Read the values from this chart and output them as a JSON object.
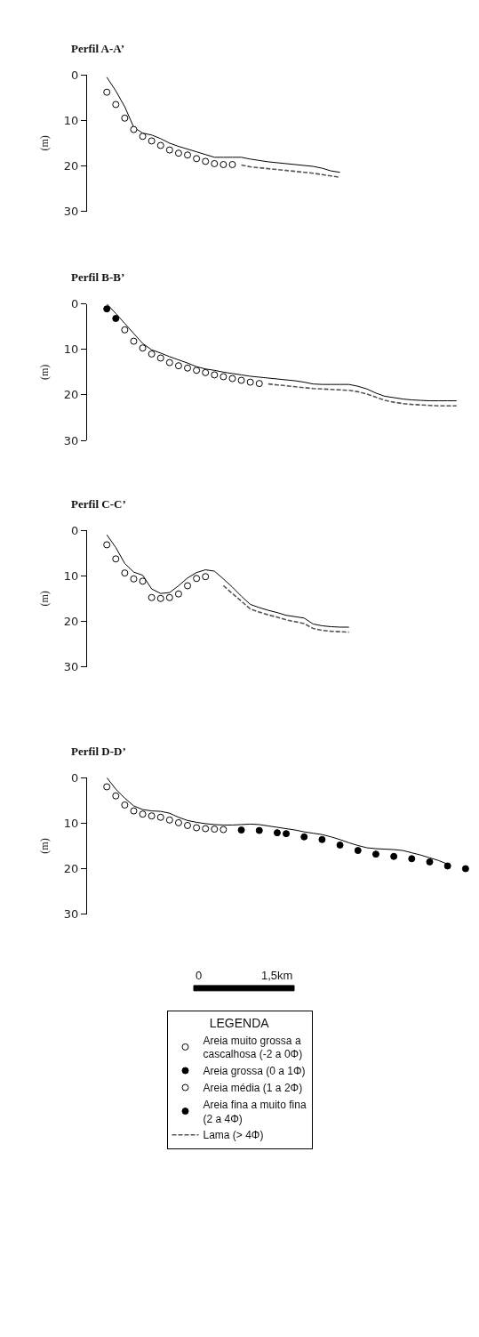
{
  "chart_data": [
    {
      "type": "line",
      "title": "Perfil A-A’",
      "ylabel": "(m)",
      "ylim": [
        30,
        0
      ],
      "yticks": [
        0,
        10,
        20,
        30
      ],
      "tick_labels": "y",
      "categories": [
        null,
        null,
        null,
        null,
        null,
        null,
        null,
        null,
        null,
        null,
        null,
        null,
        null,
        null,
        null,
        null,
        null,
        null,
        null,
        null,
        null,
        null,
        null,
        null,
        null,
        null,
        null,
        null,
        null,
        null,
        null,
        null,
        null,
        null,
        null,
        null,
        null,
        null,
        null,
        null,
        null
      ],
      "series": [
        {
          "type": "line",
          "color": "#000000",
          "marker": "none",
          "line_style": "solid",
          "values": [
            0.5,
            3.5,
            7,
            11.5,
            12.8,
            13.2,
            14,
            15,
            15.7,
            16.3,
            16.9,
            17.5,
            18.1,
            18.1,
            18.1,
            18.1,
            18.5,
            18.8,
            19.1,
            19.3,
            19.5,
            19.7,
            19.9,
            20.1,
            20.5,
            21.1,
            21.4,
            null,
            null,
            null,
            null,
            null,
            null,
            null,
            null,
            null,
            null,
            null,
            null,
            null,
            null
          ]
        },
        {
          "type": "scatter",
          "color": "#ffffff",
          "marker": "circle",
          "values": [
            3.8,
            6.5,
            9.5,
            12,
            13.5,
            14.5,
            15.5,
            16.5,
            17.2,
            17.6,
            18.4,
            19,
            19.5,
            19.7,
            19.7,
            null,
            null,
            null,
            null,
            null,
            null,
            null,
            null,
            null,
            null,
            null,
            null,
            null,
            null,
            null,
            null,
            null,
            null,
            null,
            null,
            null,
            null,
            null,
            null,
            null,
            null
          ]
        },
        {
          "type": "line",
          "color": "#555555",
          "marker": "none",
          "line_style": "dashed",
          "values": [
            null,
            null,
            null,
            null,
            null,
            null,
            null,
            null,
            null,
            null,
            null,
            null,
            null,
            null,
            null,
            19.8,
            20.2,
            20.4,
            20.6,
            20.8,
            21,
            21.2,
            21.4,
            21.6,
            21.9,
            22.2,
            22.5,
            null,
            null,
            null,
            null,
            null,
            null,
            null,
            null,
            null,
            null,
            null,
            null,
            null,
            null
          ]
        }
      ]
    },
    {
      "type": "line",
      "title": "Perfil B-B’",
      "ylabel": "(m)",
      "ylim": [
        30,
        0
      ],
      "yticks": [
        0,
        10,
        20,
        30
      ],
      "tick_labels": "y",
      "categories": [
        null,
        null,
        null,
        null,
        null,
        null,
        null,
        null,
        null,
        null,
        null,
        null,
        null,
        null,
        null,
        null,
        null,
        null,
        null,
        null,
        null,
        null,
        null,
        null,
        null,
        null,
        null,
        null,
        null,
        null,
        null,
        null,
        null,
        null,
        null,
        null,
        null,
        null,
        null,
        null,
        null
      ],
      "series": [
        {
          "type": "line",
          "color": "#000000",
          "marker": "none",
          "line_style": "solid",
          "values": [
            0,
            2.1,
            4.3,
            6.5,
            8.7,
            10.1,
            10.8,
            11.6,
            12.3,
            13,
            13.8,
            14.3,
            14.6,
            15,
            15.3,
            15.6,
            15.9,
            16.1,
            16.3,
            16.5,
            16.7,
            16.9,
            17.2,
            17.6,
            17.7,
            17.7,
            17.7,
            17.7,
            18.1,
            18.7,
            19.6,
            20.3,
            20.6,
            20.9,
            21.1,
            21.2,
            21.3,
            21.3,
            21.3,
            21.3,
            null
          ]
        },
        {
          "type": "scatter",
          "color": "#000000",
          "marker": "circle",
          "values": [
            1.1,
            3.2,
            null,
            null,
            null,
            null,
            null,
            null,
            null,
            null,
            null,
            null,
            null,
            null,
            null,
            null,
            null,
            null,
            null,
            null,
            null,
            null,
            null,
            null,
            null,
            null,
            null,
            null,
            null,
            null,
            null,
            null,
            null,
            null,
            null,
            null,
            null,
            null,
            null,
            null,
            null
          ]
        },
        {
          "type": "scatter",
          "color": "#ffffff",
          "marker": "circle",
          "values": [
            null,
            null,
            5.7,
            8.2,
            9.7,
            11,
            11.9,
            12.9,
            13.6,
            14.1,
            14.6,
            15.1,
            15.6,
            16,
            16.4,
            16.8,
            17.2,
            17.5,
            null,
            null,
            null,
            null,
            null,
            null,
            null,
            null,
            null,
            null,
            null,
            null,
            null,
            null,
            null,
            null,
            null,
            null,
            null,
            null,
            null,
            null,
            null
          ]
        },
        {
          "type": "line",
          "color": "#555555",
          "marker": "none",
          "line_style": "dashed",
          "values": [
            null,
            null,
            null,
            null,
            null,
            null,
            null,
            null,
            null,
            null,
            null,
            null,
            null,
            null,
            null,
            null,
            null,
            null,
            17.6,
            17.8,
            18,
            18.2,
            18.4,
            18.6,
            18.7,
            18.8,
            18.9,
            19,
            19.3,
            19.8,
            20.5,
            21.2,
            21.6,
            21.9,
            22.1,
            22.2,
            22.3,
            22.4,
            22.4,
            22.4,
            null
          ]
        }
      ]
    },
    {
      "type": "line",
      "title": "Perfil C-C’",
      "ylabel": "(m)",
      "ylim": [
        30,
        0
      ],
      "yticks": [
        0,
        10,
        20,
        30
      ],
      "tick_labels": "y",
      "categories": [
        null,
        null,
        null,
        null,
        null,
        null,
        null,
        null,
        null,
        null,
        null,
        null,
        null,
        null,
        null,
        null,
        null,
        null,
        null,
        null,
        null,
        null,
        null,
        null,
        null,
        null,
        null,
        null,
        null,
        null,
        null,
        null,
        null,
        null,
        null,
        null,
        null,
        null,
        null,
        null,
        null
      ],
      "series": [
        {
          "type": "line",
          "color": "#000000",
          "marker": "none",
          "line_style": "solid",
          "values": [
            1,
            3.8,
            7.3,
            9.2,
            9.9,
            12.9,
            13.9,
            13.7,
            12.2,
            10.5,
            9.3,
            8.7,
            9,
            10.7,
            12.5,
            14.5,
            16.3,
            17,
            17.6,
            18.1,
            18.7,
            19,
            19.3,
            20.6,
            21,
            21.2,
            21.3,
            21.3,
            null,
            null,
            null,
            null,
            null,
            null,
            null,
            null,
            null,
            null,
            null,
            null,
            null
          ]
        },
        {
          "type": "scatter",
          "color": "#ffffff",
          "marker": "circle",
          "values": [
            3.2,
            6.3,
            9.4,
            10.7,
            11.2,
            14.8,
            15,
            14.8,
            14,
            12.2,
            10.6,
            10.2,
            null,
            null,
            null,
            null,
            null,
            null,
            null,
            null,
            null,
            null,
            null,
            null,
            null,
            null,
            null,
            null,
            null,
            null,
            null,
            null,
            null,
            null,
            null,
            null,
            null,
            null,
            null,
            null,
            null
          ]
        },
        {
          "type": "line",
          "color": "#555555",
          "marker": "none",
          "line_style": "dashed",
          "values": [
            null,
            null,
            null,
            null,
            null,
            null,
            null,
            null,
            null,
            null,
            null,
            null,
            null,
            12.2,
            13.9,
            15.6,
            17.3,
            18,
            18.6,
            19.1,
            19.7,
            20.1,
            20.5,
            21.6,
            22,
            22.2,
            22.3,
            22.4,
            null,
            null,
            null,
            null,
            null,
            null,
            null,
            null,
            null,
            null,
            null,
            null,
            null
          ]
        }
      ]
    },
    {
      "type": "line",
      "title": "Perfil D-D’",
      "ylabel": "(m)",
      "ylim": [
        30,
        0
      ],
      "yticks": [
        0,
        10,
        20,
        30
      ],
      "tick_labels": "y",
      "legend": "bottom",
      "legend_title": "LEGENDA",
      "annotations": [
        "0",
        "1,5km"
      ],
      "categories": [
        null,
        null,
        null,
        null,
        null,
        null,
        null,
        null,
        null,
        null,
        null,
        null,
        null,
        null,
        null,
        null,
        null,
        null,
        null,
        null,
        null,
        null,
        null,
        null,
        null,
        null,
        null,
        null,
        null,
        null,
        null,
        null,
        null,
        null,
        null,
        null,
        null,
        null,
        null,
        null,
        null
      ],
      "series": [
        {
          "type": "line",
          "color": "#000000",
          "marker": "none",
          "line_style": "solid",
          "values": [
            0,
            2.5,
            4.5,
            6.2,
            7,
            7.3,
            7.4,
            7.8,
            8.7,
            9.4,
            9.8,
            10.1,
            10.3,
            10.4,
            10.4,
            10.3,
            10.2,
            10.3,
            10.6,
            10.9,
            11.2,
            11.5,
            11.9,
            12.2,
            12.5,
            13,
            13.6,
            14.3,
            14.9,
            15.4,
            15.6,
            15.7,
            15.8,
            16,
            16.5,
            17,
            17.6,
            18.2,
            19,
            null,
            null
          ]
        },
        {
          "type": "scatter",
          "name": "Areia muito grossa a\ncascalhosa (-2 a 0Φ)",
          "color": "#ffffff",
          "marker": "circle",
          "values": [
            null,
            null,
            null,
            null,
            null,
            null,
            null,
            null,
            null,
            null,
            null,
            null,
            null,
            null,
            null,
            null,
            null,
            null,
            null,
            null,
            null,
            null,
            null,
            null,
            null,
            null,
            null,
            null,
            null,
            null,
            null,
            null,
            null,
            null,
            null,
            null,
            null,
            null,
            null,
            null,
            null
          ]
        },
        {
          "type": "scatter",
          "name": "Areia grossa (0 a 1Φ)",
          "color": "#000000",
          "marker": "circle",
          "values": [
            null,
            null,
            null,
            null,
            null,
            null,
            null,
            null,
            null,
            null,
            null,
            null,
            null,
            null,
            null,
            11.5,
            null,
            11.6,
            null,
            12.1,
            12.3,
            null,
            13,
            null,
            13.6,
            null,
            14.8,
            null,
            16,
            null,
            16.8,
            null,
            17.3,
            null,
            17.8,
            null,
            18.5,
            null,
            19.4,
            null,
            20
          ]
        },
        {
          "type": "scatter",
          "name": "Areia média (1 a 2Φ)",
          "color": "#ffffff",
          "marker": "circle",
          "values": [
            2,
            4,
            6,
            7.3,
            8,
            8.4,
            8.7,
            9.3,
            9.9,
            10.5,
            11,
            11.2,
            11.3,
            11.4,
            null,
            null,
            null,
            null,
            null,
            null,
            null,
            null,
            null,
            null,
            null,
            null,
            null,
            null,
            null,
            null,
            null,
            null,
            null,
            null,
            null,
            null,
            null,
            null,
            null,
            null,
            null
          ]
        },
        {
          "type": "scatter",
          "name": "Areia fina a muito fina\n(2 a 4Φ)",
          "color": "#000000",
          "marker": "circle",
          "values": [
            null,
            null,
            null,
            null,
            null,
            null,
            null,
            null,
            null,
            null,
            null,
            null,
            null,
            null,
            null,
            null,
            null,
            null,
            null,
            null,
            null,
            null,
            null,
            null,
            null,
            null,
            null,
            null,
            null,
            null,
            null,
            null,
            null,
            null,
            null,
            null,
            null,
            null,
            null,
            null,
            null
          ]
        },
        {
          "type": "line",
          "name": "Lama (> 4Φ)",
          "color": "#555555",
          "marker": "none",
          "line_style": "dashed",
          "values": [
            null,
            null,
            null,
            null,
            null,
            null,
            null,
            null,
            null,
            null,
            null,
            null,
            null,
            null,
            null,
            null,
            null,
            null,
            null,
            null,
            null,
            null,
            null,
            null,
            null,
            null,
            null,
            null,
            null,
            null,
            null,
            null,
            null,
            null,
            null,
            null,
            null,
            null,
            null,
            null,
            null
          ]
        }
      ]
    }
  ]
}
